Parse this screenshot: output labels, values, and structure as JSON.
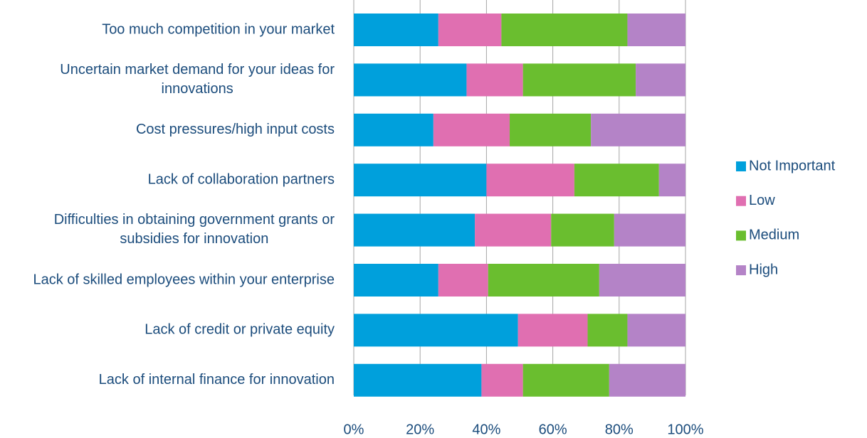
{
  "chart_data": {
    "type": "stacked-bar-horizontal",
    "categories": [
      "Too much competition in your market",
      "Uncertain market demand for your ideas for innovations",
      "Cost pressures/high input costs",
      "Lack of collaboration partners",
      "Difficulties in obtaining government grants or subsidies for innovation",
      "Lack of skilled employees within your enterprise",
      "Lack of credit or private equity",
      "Lack of internal finance for innovation"
    ],
    "series": [
      {
        "name": "Not Important",
        "color": "#00a0dc",
        "values": [
          25.5,
          34,
          24,
          40,
          36.5,
          25.5,
          49.5,
          38.5
        ]
      },
      {
        "name": "Low",
        "color": "#e06fb1",
        "values": [
          19,
          17,
          23,
          26.5,
          23,
          15,
          21,
          12.5
        ]
      },
      {
        "name": "Medium",
        "color": "#6abe2f",
        "values": [
          38,
          34,
          24.5,
          25.5,
          19,
          33.5,
          12,
          26
        ]
      },
      {
        "name": "High",
        "color": "#b483c7",
        "values": [
          17.5,
          15,
          28.5,
          8,
          21.5,
          26,
          17.5,
          23
        ]
      }
    ],
    "xlim": [
      0,
      100
    ],
    "xticks": [
      {
        "value": 0,
        "label": "0%"
      },
      {
        "value": 20,
        "label": "20%"
      },
      {
        "value": 40,
        "label": "40%"
      },
      {
        "value": 60,
        "label": "60%"
      },
      {
        "value": 80,
        "label": "80%"
      },
      {
        "value": 100,
        "label": "100%"
      }
    ],
    "grid": true,
    "legend": "right"
  }
}
